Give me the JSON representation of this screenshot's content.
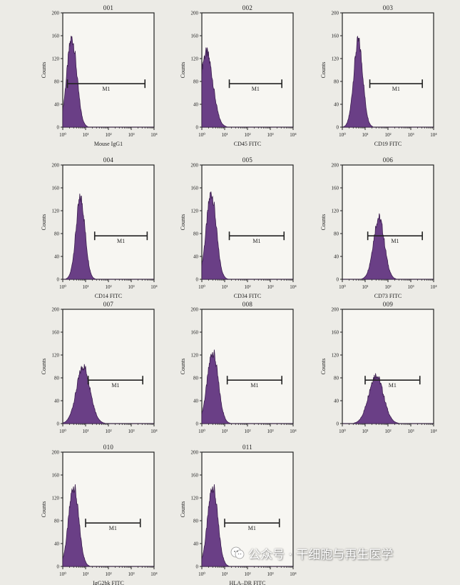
{
  "chart_data": [
    {
      "type": "histogram",
      "title": "001",
      "xlabel": "Mouse IgG1",
      "ylabel": "Counts",
      "gate_label": "M1",
      "x_scale": "log",
      "xlim": [
        1,
        10000
      ],
      "ylim": [
        0,
        200
      ],
      "yticks": [
        0,
        40,
        80,
        120,
        160,
        200
      ],
      "xticks": [
        "10⁰",
        "10¹",
        "10²",
        "10³",
        "10⁴"
      ],
      "gate": [
        1.6,
        4000
      ],
      "peak": {
        "x": 2.5,
        "y": 155,
        "spread": 0.22
      }
    },
    {
      "type": "histogram",
      "title": "002",
      "xlabel": "CD45 FITC",
      "ylabel": "Counts",
      "gate_label": "M1",
      "x_scale": "log",
      "xlim": [
        1,
        10000
      ],
      "ylim": [
        0,
        200
      ],
      "yticks": [
        0,
        40,
        80,
        120,
        160,
        200
      ],
      "xticks": [
        "10⁰",
        "10¹",
        "10²",
        "10³",
        "10⁴"
      ],
      "gate": [
        16,
        3200
      ],
      "peak": {
        "x": 1.6,
        "y": 130,
        "spread": 0.28
      }
    },
    {
      "type": "histogram",
      "title": "003",
      "xlabel": "CD19 FITC",
      "ylabel": "Counts",
      "gate_label": "M1",
      "x_scale": "log",
      "xlim": [
        1,
        10000
      ],
      "ylim": [
        0,
        200
      ],
      "yticks": [
        0,
        40,
        80,
        120,
        160,
        200
      ],
      "xticks": [
        "10⁰",
        "10¹",
        "10²",
        "10³",
        "10⁴"
      ],
      "gate": [
        16,
        3200
      ],
      "peak": {
        "x": 5,
        "y": 150,
        "spread": 0.2
      }
    },
    {
      "type": "histogram",
      "title": "004",
      "xlabel": "CD14 FITC",
      "ylabel": "Counts",
      "gate_label": "M1",
      "x_scale": "log",
      "xlim": [
        1,
        10000
      ],
      "ylim": [
        0,
        200
      ],
      "yticks": [
        0,
        40,
        80,
        120,
        160,
        200
      ],
      "xticks": [
        "10⁰",
        "10¹",
        "10²",
        "10³",
        "10⁴"
      ],
      "gate": [
        25,
        5000
      ],
      "peak": {
        "x": 6,
        "y": 142,
        "spread": 0.2
      }
    },
    {
      "type": "histogram",
      "title": "005",
      "xlabel": "CD34 FITC",
      "ylabel": "Counts",
      "gate_label": "M1",
      "x_scale": "log",
      "xlim": [
        1,
        10000
      ],
      "ylim": [
        0,
        200
      ],
      "yticks": [
        0,
        40,
        80,
        120,
        160,
        200
      ],
      "xticks": [
        "10⁰",
        "10¹",
        "10²",
        "10³",
        "10⁴"
      ],
      "gate": [
        16,
        4000
      ],
      "peak": {
        "x": 2.6,
        "y": 150,
        "spread": 0.22
      }
    },
    {
      "type": "histogram",
      "title": "006",
      "xlabel": "CD73 FITC",
      "ylabel": "Counts",
      "gate_label": "M1",
      "x_scale": "log",
      "xlim": [
        1,
        10000
      ],
      "ylim": [
        0,
        200
      ],
      "yticks": [
        0,
        40,
        80,
        120,
        160,
        200
      ],
      "xticks": [
        "10⁰",
        "10¹",
        "10²",
        "10³",
        "10⁴"
      ],
      "gate": [
        13,
        3200
      ],
      "peak": {
        "x": 40,
        "y": 108,
        "spread": 0.24
      }
    },
    {
      "type": "histogram",
      "title": "007",
      "xlabel": "",
      "ylabel": "Counts",
      "gate_label": "M1",
      "x_scale": "log",
      "xlim": [
        1,
        10000
      ],
      "ylim": [
        0,
        200
      ],
      "yticks": [
        0,
        40,
        80,
        120,
        160,
        200
      ],
      "xticks": [
        "10⁰",
        "10¹",
        "10²",
        "10³",
        "10⁴"
      ],
      "gate": [
        13,
        3200
      ],
      "peak": {
        "x": 8,
        "y": 100,
        "spread": 0.3
      }
    },
    {
      "type": "histogram",
      "title": "008",
      "xlabel": "",
      "ylabel": "Counts",
      "gate_label": "M1",
      "x_scale": "log",
      "xlim": [
        1,
        10000
      ],
      "ylim": [
        0,
        200
      ],
      "yticks": [
        0,
        40,
        80,
        120,
        160,
        200
      ],
      "xticks": [
        "10⁰",
        "10¹",
        "10²",
        "10³",
        "10⁴"
      ],
      "gate": [
        13,
        3200
      ],
      "peak": {
        "x": 3,
        "y": 125,
        "spread": 0.24
      }
    },
    {
      "type": "histogram",
      "title": "009",
      "xlabel": "",
      "ylabel": "Counts",
      "gate_label": "M1",
      "x_scale": "log",
      "xlim": [
        1,
        10000
      ],
      "ylim": [
        0,
        200
      ],
      "yticks": [
        0,
        40,
        80,
        120,
        160,
        200
      ],
      "xticks": [
        "10⁰",
        "10¹",
        "10²",
        "10³",
        "10⁴"
      ],
      "gate": [
        10,
        2500
      ],
      "peak": {
        "x": 30,
        "y": 85,
        "spread": 0.32
      }
    },
    {
      "type": "histogram",
      "title": "010",
      "xlabel": "IgG2bk FITC",
      "ylabel": "Counts",
      "gate_label": "M1",
      "x_scale": "log",
      "xlim": [
        1,
        10000
      ],
      "ylim": [
        0,
        200
      ],
      "yticks": [
        0,
        40,
        80,
        120,
        160,
        200
      ],
      "xticks": [
        "10⁰",
        "10¹",
        "10²",
        "10³",
        "10⁴"
      ],
      "gate": [
        10,
        2500
      ],
      "peak": {
        "x": 3,
        "y": 140,
        "spread": 0.22
      }
    },
    {
      "type": "histogram",
      "title": "011",
      "xlabel": "HLA–DR FITC",
      "ylabel": "Counts",
      "gate_label": "M1",
      "x_scale": "log",
      "xlim": [
        1,
        10000
      ],
      "ylim": [
        0,
        200
      ],
      "yticks": [
        0,
        40,
        80,
        120,
        160,
        200
      ],
      "xticks": [
        "10⁰",
        "10¹",
        "10²",
        "10³",
        "10⁴"
      ],
      "gate": [
        10,
        2500
      ],
      "peak": {
        "x": 3,
        "y": 140,
        "spread": 0.22
      }
    }
  ],
  "watermark": {
    "text": "公众号 · 干细胞与再生医学",
    "icon": "wechat-icon"
  },
  "colors": {
    "histogram_fill": "#6a3f86",
    "histogram_stroke": "#3c1f4f"
  }
}
